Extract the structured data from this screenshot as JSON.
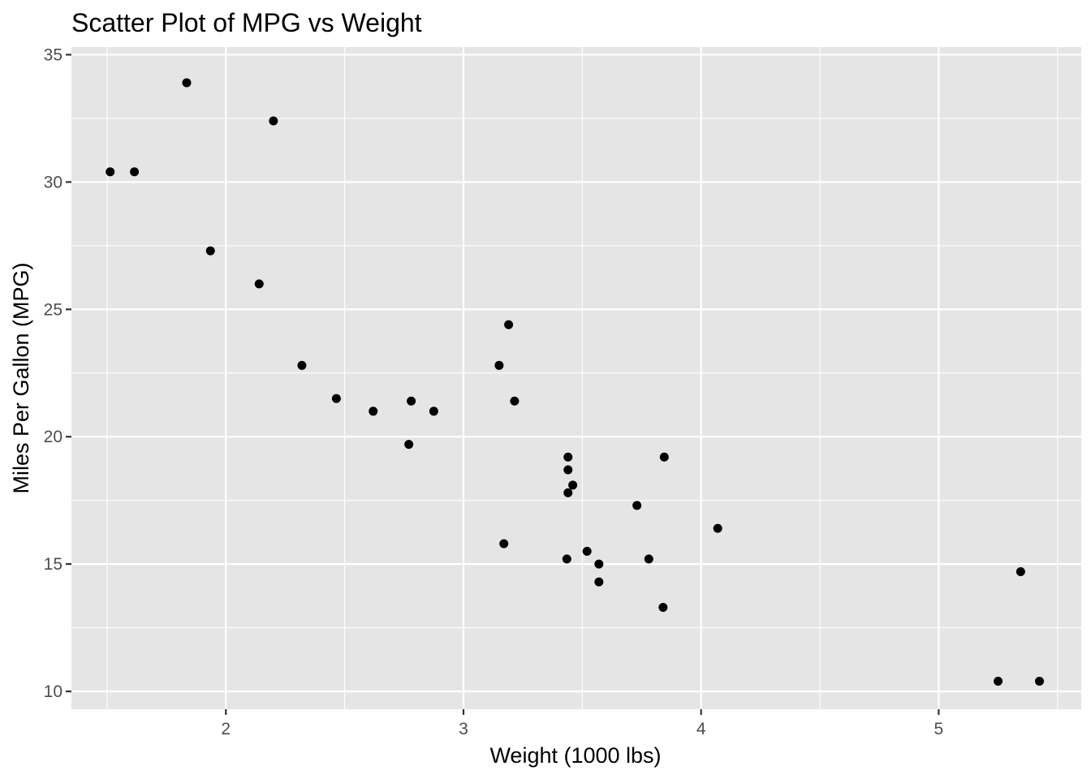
{
  "chart_data": {
    "type": "scatter",
    "title": "Scatter Plot of MPG vs Weight",
    "xlabel": "Weight (1000 lbs)",
    "ylabel": "Miles Per Gallon (MPG)",
    "xlim": [
      1.35,
      5.6
    ],
    "ylim": [
      9.3,
      35.3
    ],
    "x_ticks": [
      2,
      3,
      4,
      5
    ],
    "y_ticks": [
      10,
      15,
      20,
      25,
      30,
      35
    ],
    "x_minor": [
      1.5,
      2.5,
      3.5,
      4.5,
      5.5
    ],
    "y_minor": [
      12.5,
      17.5,
      22.5,
      27.5,
      32.5
    ],
    "grid": true,
    "legend": "none",
    "colors": {
      "panel": "#e5e5e5",
      "grid": "#ffffff",
      "point": "#000000",
      "tick": "#333333"
    },
    "points": [
      {
        "x": 2.62,
        "y": 21.0
      },
      {
        "x": 2.875,
        "y": 21.0
      },
      {
        "x": 2.32,
        "y": 22.8
      },
      {
        "x": 3.215,
        "y": 21.4
      },
      {
        "x": 3.44,
        "y": 18.7
      },
      {
        "x": 3.46,
        "y": 18.1
      },
      {
        "x": 3.57,
        "y": 14.3
      },
      {
        "x": 3.19,
        "y": 24.4
      },
      {
        "x": 3.15,
        "y": 22.8
      },
      {
        "x": 3.44,
        "y": 19.2
      },
      {
        "x": 3.44,
        "y": 17.8
      },
      {
        "x": 4.07,
        "y": 16.4
      },
      {
        "x": 3.73,
        "y": 17.3
      },
      {
        "x": 3.78,
        "y": 15.2
      },
      {
        "x": 5.25,
        "y": 10.4
      },
      {
        "x": 5.424,
        "y": 10.4
      },
      {
        "x": 5.345,
        "y": 14.7
      },
      {
        "x": 2.2,
        "y": 32.4
      },
      {
        "x": 1.615,
        "y": 30.4
      },
      {
        "x": 1.835,
        "y": 33.9
      },
      {
        "x": 2.465,
        "y": 21.5
      },
      {
        "x": 3.52,
        "y": 15.5
      },
      {
        "x": 3.435,
        "y": 15.2
      },
      {
        "x": 3.84,
        "y": 13.3
      },
      {
        "x": 3.845,
        "y": 19.2
      },
      {
        "x": 1.935,
        "y": 27.3
      },
      {
        "x": 2.14,
        "y": 26.0
      },
      {
        "x": 1.513,
        "y": 30.4
      },
      {
        "x": 3.17,
        "y": 15.8
      },
      {
        "x": 2.77,
        "y": 19.7
      },
      {
        "x": 3.57,
        "y": 15.0
      },
      {
        "x": 2.78,
        "y": 21.4
      }
    ]
  }
}
